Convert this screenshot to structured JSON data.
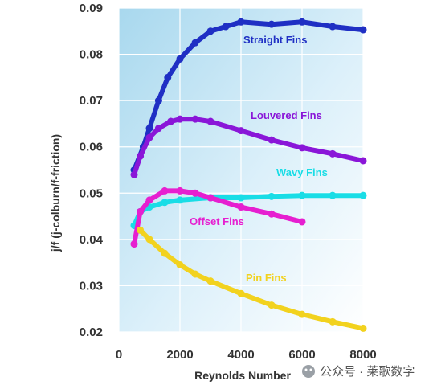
{
  "chart_data": {
    "type": "line",
    "xlabel": "Reynolds Number",
    "ylabel": "j/f (j-colburn/f-friction)",
    "xlim": [
      0,
      8000
    ],
    "ylim": [
      0.02,
      0.09
    ],
    "x_ticks": [
      "0",
      "2000",
      "4000",
      "6000",
      "8000"
    ],
    "y_ticks": [
      "0.02",
      "0.03",
      "0.04",
      "0.05",
      "0.06",
      "0.07",
      "0.08",
      "0.09"
    ],
    "grid": true,
    "background": "light blue gradient",
    "series": [
      {
        "name": "Straight Fins",
        "color": "#1f2fc4",
        "x": [
          500,
          800,
          1000,
          1300,
          1600,
          2000,
          2500,
          3000,
          3500,
          4000,
          5000,
          6000,
          7000,
          8000
        ],
        "y": [
          0.055,
          0.06,
          0.064,
          0.07,
          0.075,
          0.079,
          0.0825,
          0.085,
          0.086,
          0.087,
          0.0865,
          0.087,
          0.086,
          0.0853
        ]
      },
      {
        "name": "Louvered Fins",
        "color": "#8a16d8",
        "x": [
          500,
          700,
          1000,
          1300,
          1700,
          2000,
          2500,
          3000,
          4000,
          5000,
          6000,
          7000,
          8000
        ],
        "y": [
          0.054,
          0.058,
          0.062,
          0.064,
          0.0655,
          0.066,
          0.066,
          0.0655,
          0.0635,
          0.0615,
          0.0598,
          0.0585,
          0.057
        ]
      },
      {
        "name": "Wavy Fins",
        "color": "#19dde6",
        "x": [
          500,
          700,
          1000,
          1500,
          2000,
          3000,
          4000,
          5000,
          6000,
          7000,
          8000
        ],
        "y": [
          0.043,
          0.046,
          0.047,
          0.048,
          0.0485,
          0.049,
          0.049,
          0.0493,
          0.0495,
          0.0495,
          0.0495
        ]
      },
      {
        "name": "Offset Fins",
        "color": "#e61fd0",
        "x": [
          500,
          700,
          1000,
          1500,
          2000,
          2500,
          3000,
          4000,
          5000,
          6000
        ],
        "y": [
          0.039,
          0.046,
          0.0485,
          0.0505,
          0.0505,
          0.05,
          0.049,
          0.047,
          0.0455,
          0.0438
        ]
      },
      {
        "name": "Pin Fins",
        "color": "#f2d21e",
        "x": [
          700,
          1000,
          1500,
          2000,
          2500,
          3000,
          4000,
          5000,
          6000,
          7000,
          8000
        ],
        "y": [
          0.042,
          0.04,
          0.037,
          0.0345,
          0.0325,
          0.031,
          0.0283,
          0.0258,
          0.0238,
          0.0222,
          0.0208
        ]
      }
    ]
  },
  "watermark": {
    "text": "公众号 · 莱歌数字"
  }
}
